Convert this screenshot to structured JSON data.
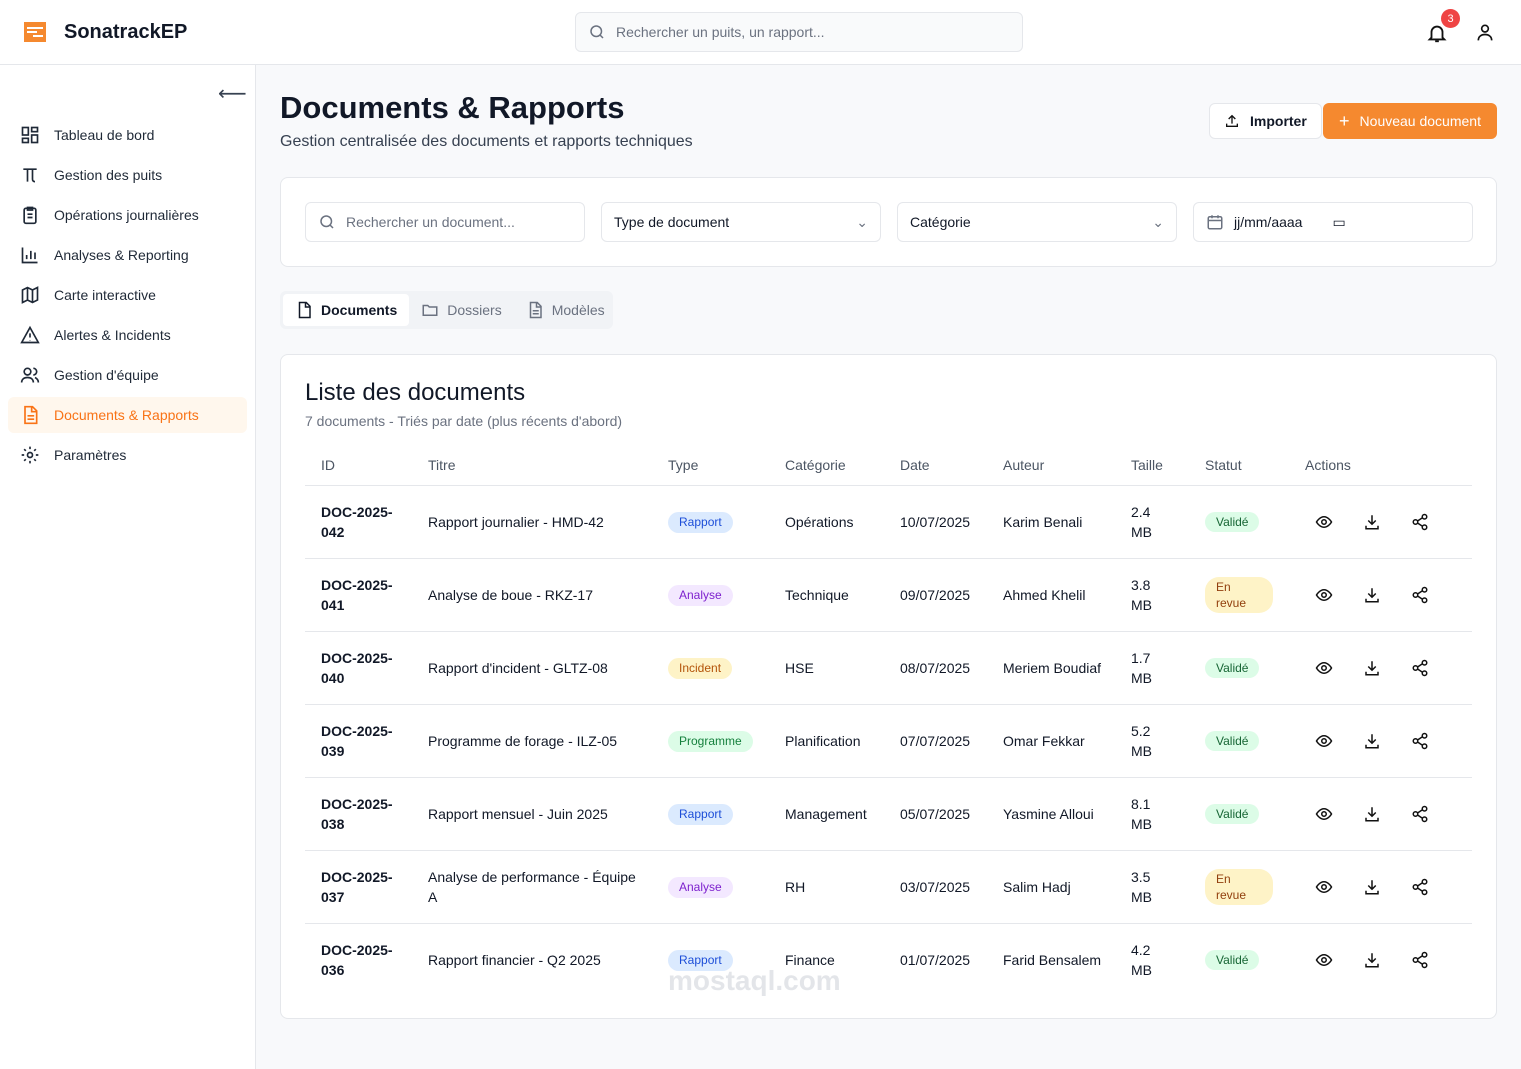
{
  "app": {
    "brand": "SonatrackEP",
    "search_placeholder": "Rechercher un puits, un rapport...",
    "notifications": "3"
  },
  "sidebar": {
    "items": [
      {
        "label": "Tableau de bord",
        "icon": "dashboard-icon"
      },
      {
        "label": "Gestion des puits",
        "icon": "pi-icon"
      },
      {
        "label": "Opérations journalières",
        "icon": "clipboard-icon"
      },
      {
        "label": "Analyses & Reporting",
        "icon": "bar-chart-icon"
      },
      {
        "label": "Carte interactive",
        "icon": "map-icon"
      },
      {
        "label": "Alertes & Incidents",
        "icon": "alert-icon"
      },
      {
        "label": "Gestion d'équipe",
        "icon": "users-icon"
      },
      {
        "label": "Documents & Rapports",
        "icon": "document-icon",
        "active": true
      },
      {
        "label": "Paramètres",
        "icon": "gear-icon"
      }
    ]
  },
  "page": {
    "title": "Documents & Rapports",
    "subtitle": "Gestion centralisée des documents et rapports techniques",
    "import_label": "Importer",
    "new_label": "Nouveau document"
  },
  "filters": {
    "search_placeholder": "Rechercher un document...",
    "type": "Type de document",
    "category": "Catégorie",
    "date_placeholder": "jj/mm/aaaa"
  },
  "tabs": [
    {
      "label": "Documents",
      "active": true
    },
    {
      "label": "Dossiers"
    },
    {
      "label": "Modèles"
    }
  ],
  "list": {
    "title": "Liste des documents",
    "description": "7 documents - Triés par date (plus récents d'abord)",
    "columns": [
      "ID",
      "Titre",
      "Type",
      "Catégorie",
      "Date",
      "Auteur",
      "Taille",
      "Statut",
      "Actions"
    ],
    "rows": [
      {
        "id": "DOC-2025-042",
        "title": "Rapport journalier - HMD-42",
        "type": "Rapport",
        "category": "Opérations",
        "date": "10/07/2025",
        "author": "Karim Benali",
        "size": "2.4 MB",
        "status": "Validé"
      },
      {
        "id": "DOC-2025-041",
        "title": "Analyse de boue - RKZ-17",
        "type": "Analyse",
        "category": "Technique",
        "date": "09/07/2025",
        "author": "Ahmed Khelil",
        "size": "3.8 MB",
        "status": "En revue"
      },
      {
        "id": "DOC-2025-040",
        "title": "Rapport d'incident - GLTZ-08",
        "type": "Incident",
        "category": "HSE",
        "date": "08/07/2025",
        "author": "Meriem Boudiaf",
        "size": "1.7 MB",
        "status": "Validé"
      },
      {
        "id": "DOC-2025-039",
        "title": "Programme de forage - ILZ-05",
        "type": "Programme",
        "category": "Planification",
        "date": "07/07/2025",
        "author": "Omar Fekkar",
        "size": "5.2 MB",
        "status": "Validé"
      },
      {
        "id": "DOC-2025-038",
        "title": "Rapport mensuel - Juin 2025",
        "type": "Rapport",
        "category": "Management",
        "date": "05/07/2025",
        "author": "Yasmine Alloui",
        "size": "8.1 MB",
        "status": "Validé"
      },
      {
        "id": "DOC-2025-037",
        "title": "Analyse de performance - Équipe A",
        "type": "Analyse",
        "category": "RH",
        "date": "03/07/2025",
        "author": "Salim Hadj",
        "size": "3.5 MB",
        "status": "En revue"
      },
      {
        "id": "DOC-2025-036",
        "title": "Rapport financier - Q2 2025",
        "type": "Rapport",
        "category": "Finance",
        "date": "01/07/2025",
        "author": "Farid Bensalem",
        "size": "4.2 MB",
        "status": "Validé"
      }
    ]
  },
  "colors": {
    "accent": "#f5892f",
    "Rapport": [
      "#dbeafe",
      "#1d4ed8"
    ],
    "Analyse": [
      "#f3e8ff",
      "#7e22ce"
    ],
    "Incident": [
      "#fef3c7",
      "#b45309"
    ],
    "Programme": [
      "#dcfce7",
      "#15803d"
    ],
    "Validé": [
      "#dcfce7",
      "#166534"
    ],
    "En revue": [
      "#fef3c7",
      "#92400e"
    ]
  },
  "watermark": "mostaql.com"
}
